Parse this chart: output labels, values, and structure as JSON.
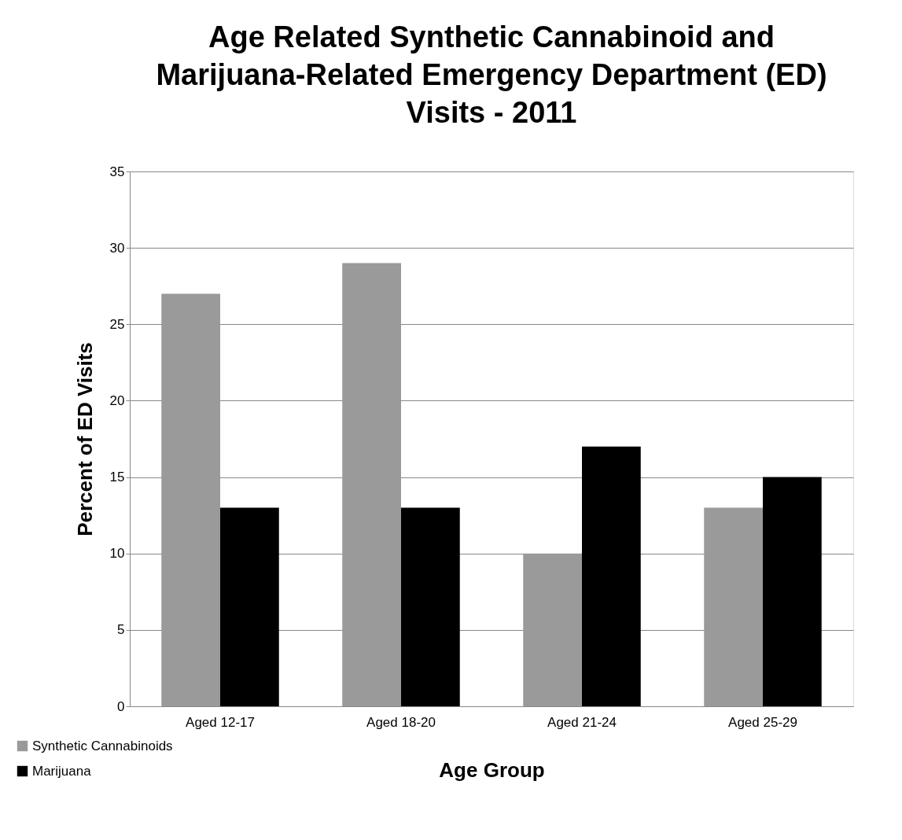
{
  "chart_data": {
    "type": "bar",
    "title": "Age Related Synthetic Cannabinoid and Marijuana-Related Emergency Department (ED) Visits - 2011",
    "xlabel": "Age Group",
    "ylabel": "Percent of ED Visits",
    "categories": [
      "Aged 12-17",
      "Aged 18-20",
      "Aged 21-24",
      "Aged 25-29"
    ],
    "series": [
      {
        "name": "Synthetic Cannabinoids",
        "color": "#9a9a9a",
        "values": [
          27,
          29,
          10,
          13
        ]
      },
      {
        "name": "Marijuana",
        "color": "#000000",
        "values": [
          13,
          13,
          17,
          15
        ]
      }
    ],
    "ylim": [
      0,
      35
    ],
    "yticks": [
      0,
      5,
      10,
      15,
      20,
      25,
      30,
      35
    ],
    "grid": "y",
    "legend": "bottom left"
  }
}
